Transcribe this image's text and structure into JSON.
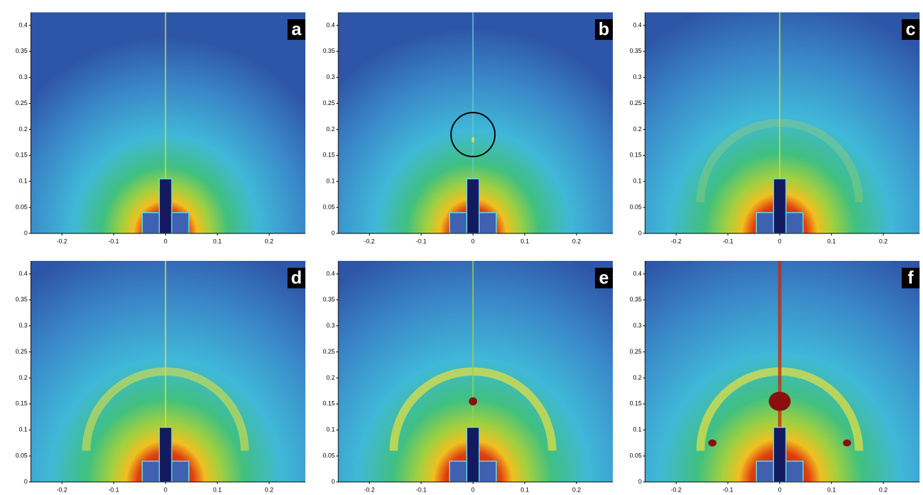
{
  "chart_data": [
    {
      "type": "image",
      "label": "a",
      "xlim": [
        -0.26,
        0.27
      ],
      "ylim": [
        0,
        0.425
      ],
      "xticks": [
        -0.2,
        -0.1,
        0,
        0.1,
        0.2
      ],
      "yticks": [
        0,
        0.05,
        0.1,
        0.15,
        0.2,
        0.25,
        0.3,
        0.35,
        0.4
      ]
    },
    {
      "type": "image",
      "label": "b",
      "xlim": [
        -0.26,
        0.27
      ],
      "ylim": [
        0,
        0.425
      ],
      "xticks": [
        -0.2,
        -0.1,
        0,
        0.1,
        0.2
      ],
      "yticks": [
        0,
        0.05,
        0.1,
        0.15,
        0.2,
        0.25,
        0.3,
        0.35,
        0.4
      ]
    },
    {
      "type": "image",
      "label": "c",
      "xlim": [
        -0.26,
        0.27
      ],
      "ylim": [
        0,
        0.425
      ],
      "xticks": [
        -0.2,
        -0.1,
        0,
        0.1,
        0.2
      ],
      "yticks": [
        0,
        0.05,
        0.1,
        0.15,
        0.2,
        0.25,
        0.3,
        0.35,
        0.4
      ]
    },
    {
      "type": "image",
      "label": "d",
      "xlim": [
        -0.26,
        0.27
      ],
      "ylim": [
        0,
        0.425
      ],
      "xticks": [
        -0.2,
        -0.1,
        0,
        0.1,
        0.2
      ],
      "yticks": [
        0,
        0.05,
        0.1,
        0.15,
        0.2,
        0.25,
        0.3,
        0.35,
        0.4
      ]
    },
    {
      "type": "image",
      "label": "e",
      "xlim": [
        -0.26,
        0.27
      ],
      "ylim": [
        0,
        0.425
      ],
      "xticks": [
        -0.2,
        -0.1,
        0,
        0.1,
        0.2
      ],
      "yticks": [
        0,
        0.05,
        0.1,
        0.15,
        0.2,
        0.25,
        0.3,
        0.35,
        0.4
      ]
    },
    {
      "type": "image",
      "label": "f",
      "xlim": [
        -0.26,
        0.27
      ],
      "ylim": [
        0,
        0.425
      ],
      "xticks": [
        -0.2,
        -0.1,
        0,
        0.1,
        0.2
      ],
      "yticks": [
        0,
        0.05,
        0.1,
        0.15,
        0.2,
        0.25,
        0.3,
        0.35,
        0.4
      ]
    }
  ]
}
